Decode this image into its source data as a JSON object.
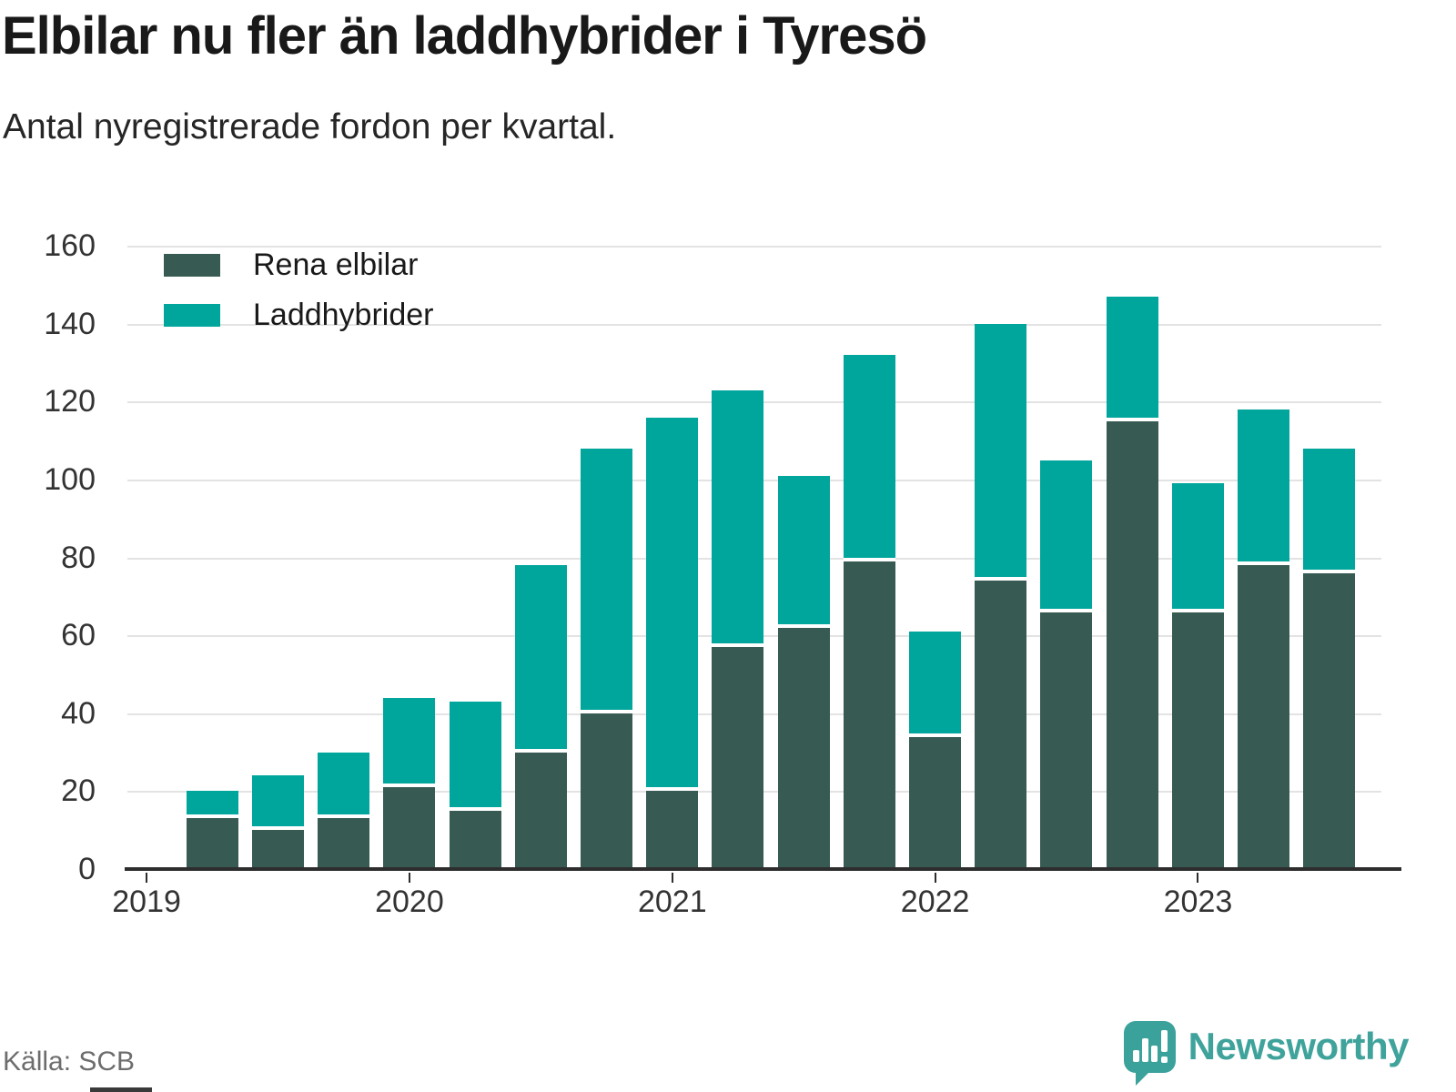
{
  "header": {
    "title": "Elbilar nu fler än laddhybrider i Tyresö",
    "subtitle": "Antal nyregistrerade fordon per kvartal."
  },
  "legend": {
    "items": [
      {
        "label": "Rena elbilar",
        "color": "#375a52"
      },
      {
        "label": "Laddhybrider",
        "color": "#00a59c"
      }
    ]
  },
  "chart_data": {
    "type": "bar",
    "stacked": true,
    "title": "Elbilar nu fler än laddhybrider i Tyresö",
    "subtitle": "Antal nyregistrerade fordon per kvartal.",
    "categories": [
      "2019 K2",
      "2019 K3",
      "2019 K4",
      "2020 K1",
      "2020 K2",
      "2020 K3",
      "2020 K4",
      "2021 K1",
      "2021 K2",
      "2021 K3",
      "2021 K4",
      "2022 K1",
      "2022 K2",
      "2022 K3",
      "2022 K4",
      "2023 K1",
      "2023 K2",
      "2023 K3"
    ],
    "series": [
      {
        "name": "Rena elbilar",
        "color": "#375a52",
        "values": [
          13,
          10,
          13,
          21,
          15,
          30,
          40,
          20,
          57,
          62,
          79,
          34,
          74,
          66,
          115,
          66,
          78,
          76
        ]
      },
      {
        "name": "Laddhybrider",
        "color": "#00a59c",
        "values": [
          7,
          14,
          17,
          23,
          28,
          48,
          68,
          96,
          66,
          39,
          53,
          27,
          66,
          39,
          32,
          33,
          40,
          32
        ]
      }
    ],
    "totals": [
      20,
      24,
      30,
      44,
      43,
      78,
      108,
      116,
      123,
      101,
      132,
      61,
      140,
      105,
      147,
      99,
      118,
      108
    ],
    "ylabel": "",
    "xlabel": "",
    "ylim": [
      0,
      160
    ],
    "yticks": [
      0,
      20,
      40,
      60,
      80,
      100,
      120,
      140,
      160
    ],
    "x_ticks": [
      {
        "label": "2019",
        "slot": 0
      },
      {
        "label": "2020",
        "slot": 4
      },
      {
        "label": "2021",
        "slot": 8
      },
      {
        "label": "2022",
        "slot": 12
      },
      {
        "label": "2023",
        "slot": 16
      }
    ],
    "n_slots": 19,
    "grid": "horizontal",
    "legend_position": "top-left"
  },
  "footer": {
    "source": "Källa: SCB",
    "brand": "Newsworthy"
  }
}
